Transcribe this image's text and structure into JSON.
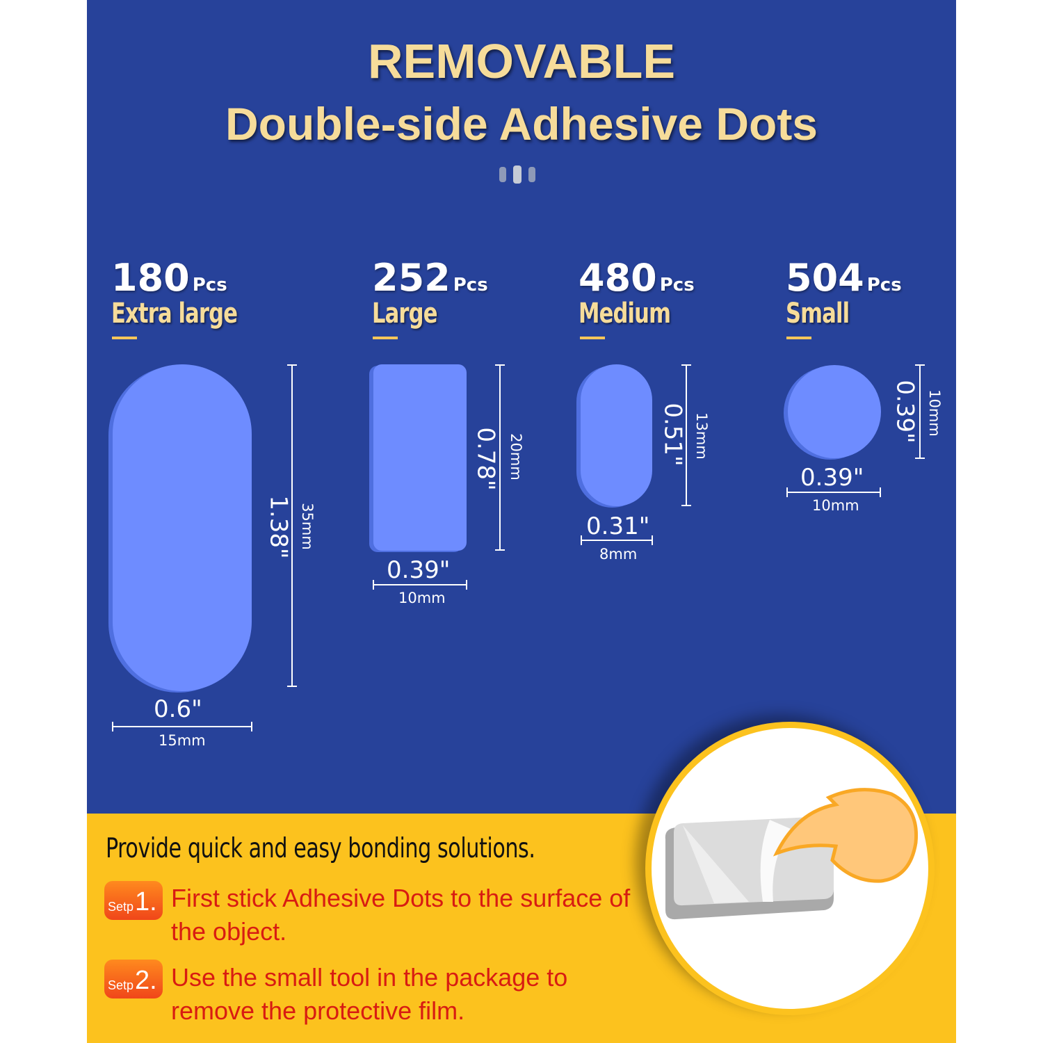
{
  "header": {
    "title": "REMOVABLE",
    "subtitle": "Double-side Adhesive Dots"
  },
  "colors": {
    "background": "#27429a",
    "accent": "#f6dc9a",
    "dot": "#6e8cff",
    "bottom": "#fcc21e",
    "step_text": "#d81c12"
  },
  "products": [
    {
      "count": "180",
      "unit": "Pcs",
      "size": "Extra large",
      "height_in": "1.38\"",
      "height_mm": "35mm",
      "width_in": "0.6\"",
      "width_mm": "15mm",
      "shape": "pill"
    },
    {
      "count": "252",
      "unit": "Pcs",
      "size": "Large",
      "height_in": "0.78\"",
      "height_mm": "20mm",
      "width_in": "0.39\"",
      "width_mm": "10mm",
      "shape": "rounded-rectangle"
    },
    {
      "count": "480",
      "unit": "Pcs",
      "size": "Medium",
      "height_in": "0.51\"",
      "height_mm": "13mm",
      "width_in": "0.31\"",
      "width_mm": "8mm",
      "shape": "pill"
    },
    {
      "count": "504",
      "unit": "Pcs",
      "size": "Small",
      "height_in": "0.39\"",
      "height_mm": "10mm",
      "width_in": "0.39\"",
      "width_mm": "10mm",
      "shape": "circle"
    }
  ],
  "instructions": {
    "headline": "Provide quick and easy bonding solutions.",
    "steps": [
      {
        "label": "Setp",
        "number": "1.",
        "text": "First stick Adhesive Dots to the surface of the object."
      },
      {
        "label": "Setp",
        "number": "2.",
        "text": "Use the small tool in the package to remove the protective film."
      }
    ]
  }
}
